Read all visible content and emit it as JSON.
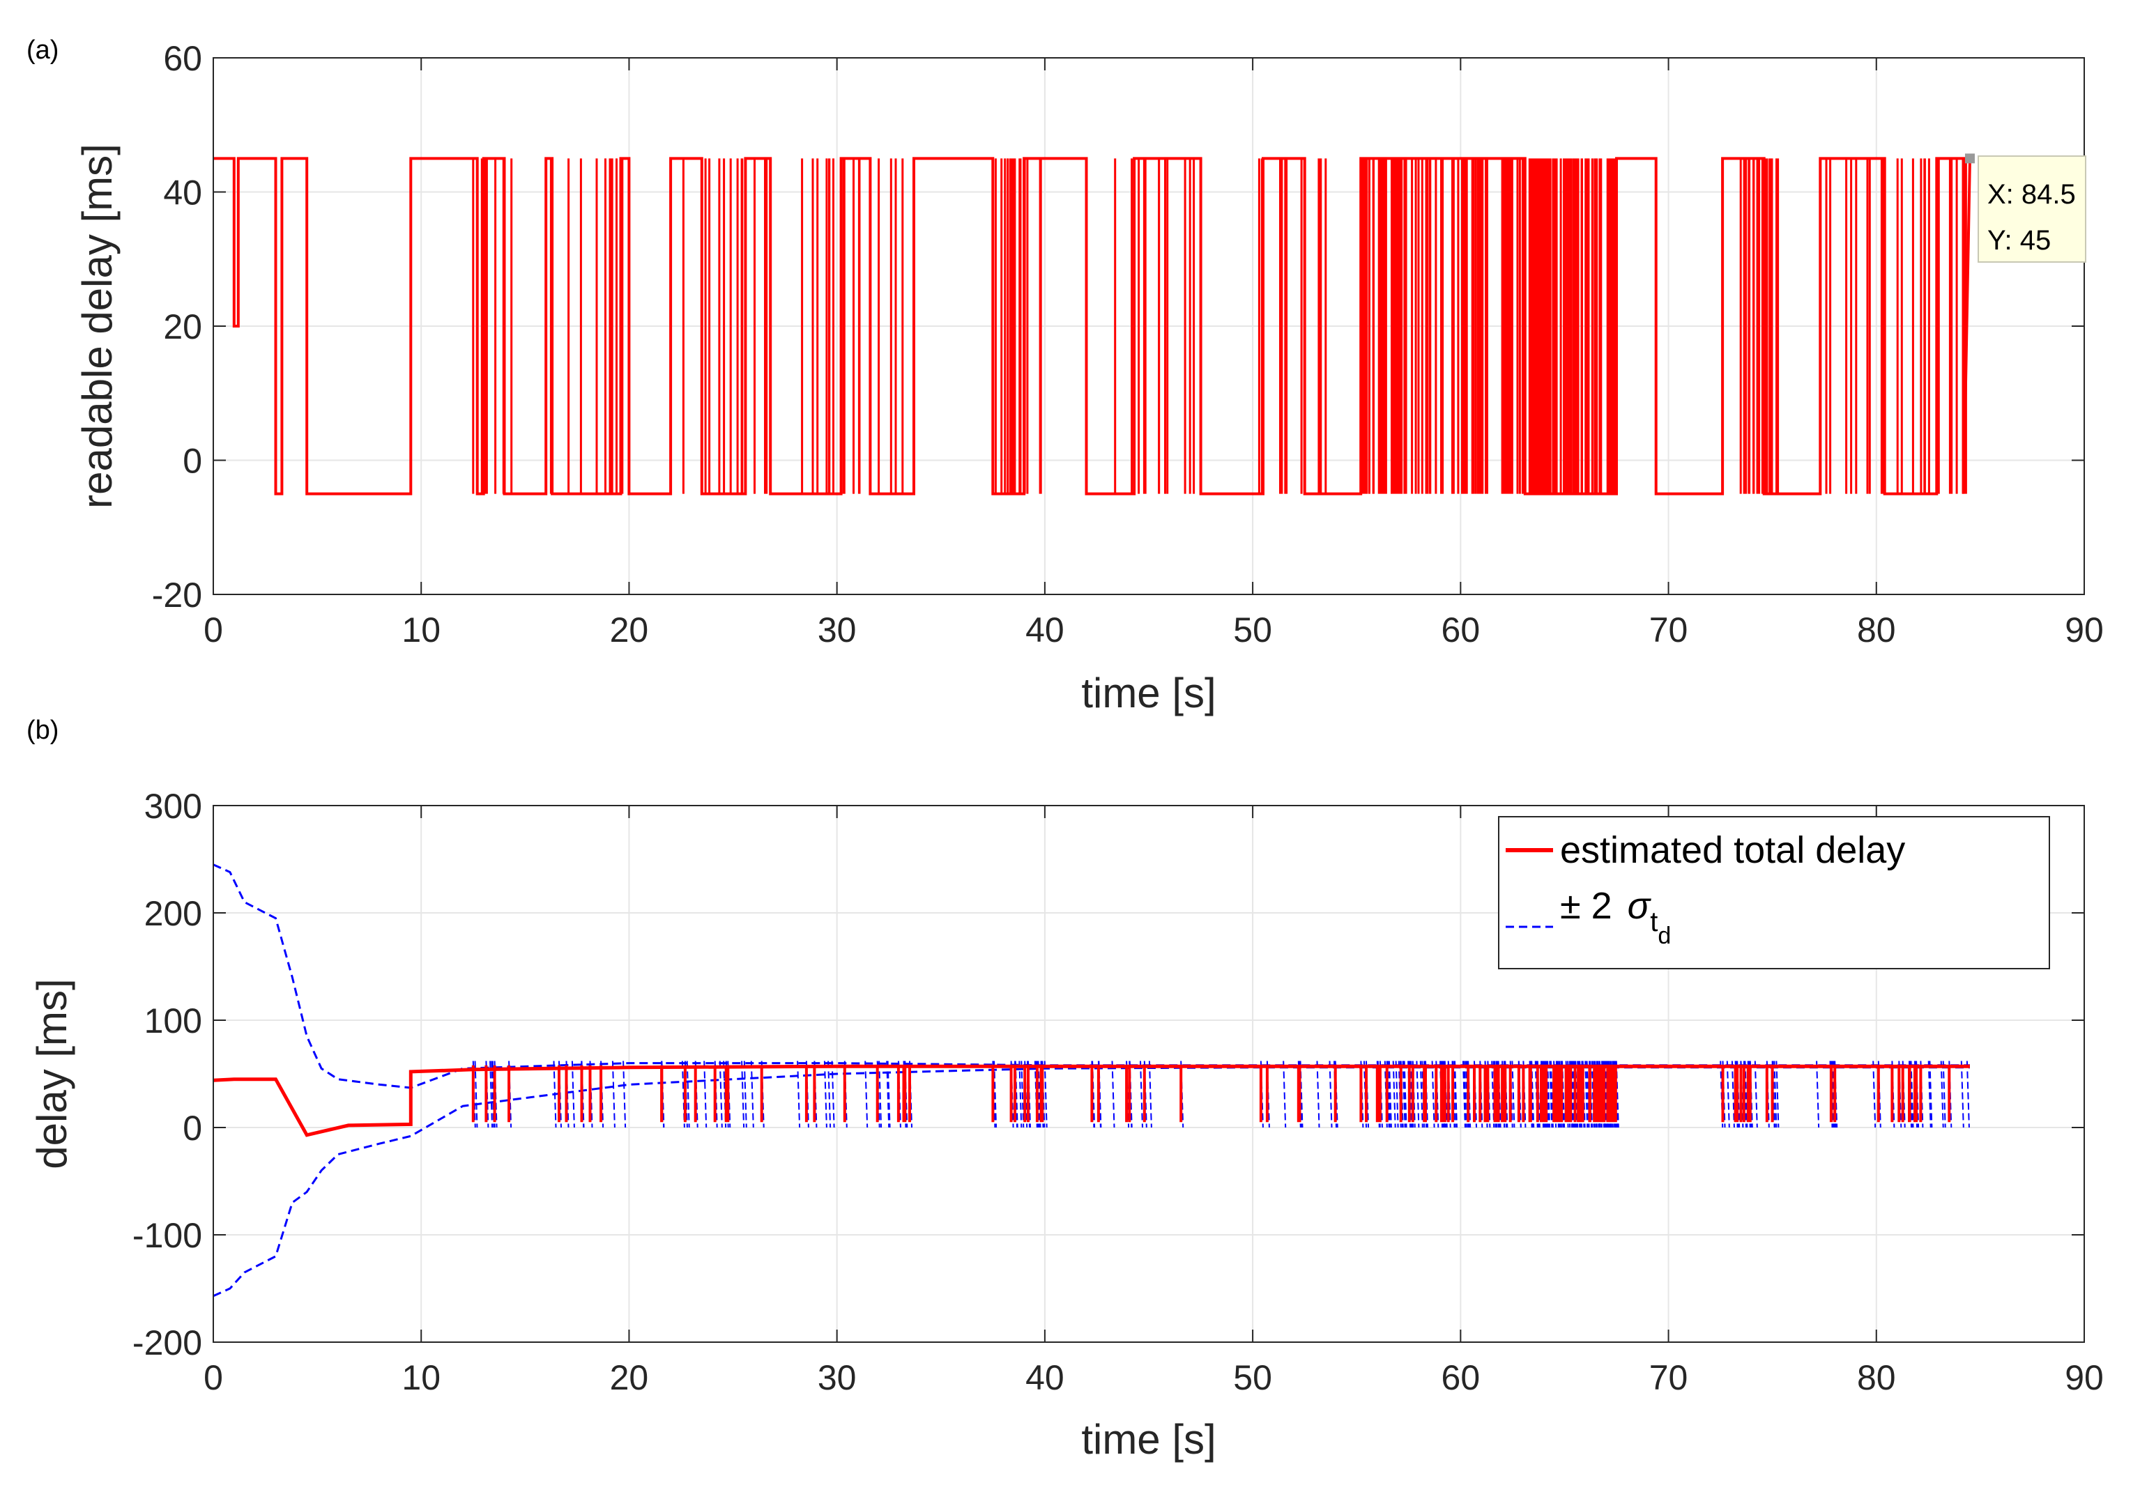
{
  "chart_data": [
    {
      "panel_label": "(a)",
      "type": "line",
      "xlabel": "time [s]",
      "ylabel": "readable delay [ms]",
      "xlim": [
        0,
        90
      ],
      "ylim": [
        -20,
        60
      ],
      "xticks": [
        "0",
        "10",
        "20",
        "30",
        "40",
        "50",
        "60",
        "70",
        "80",
        "90"
      ],
      "yticks": [
        "60",
        "40",
        "20",
        "0",
        "-20"
      ],
      "grid": true,
      "colors": {
        "series": "#ff0000"
      },
      "high_level": 45,
      "low_level": -5,
      "series": [
        {
          "color": "#ff0000",
          "x": [
            0,
            1.0,
            1.0,
            1.2,
            1.2,
            3.0,
            3.0,
            3.3,
            3.3,
            4.5,
            4.5,
            9.5,
            9.5,
            12.7,
            12.7,
            13.0,
            13.0,
            14.0,
            14.0,
            16.0,
            16.0,
            16.3,
            16.3,
            19.6,
            19.6,
            20.0,
            20.0,
            22.0,
            22.0,
            23.5,
            23.5,
            25.6,
            25.6,
            26.8,
            26.8,
            30.2,
            30.2,
            31.6,
            31.6,
            33.7,
            33.7,
            37.5,
            37.5,
            39.0,
            39.0,
            42.0,
            42.0,
            44.3,
            44.3,
            47.5,
            47.5,
            50.5,
            50.5,
            52.5,
            52.5,
            55.2,
            55.2,
            63.1,
            63.1,
            67.5,
            67.5,
            69.4,
            69.4,
            72.6,
            72.6,
            74.6,
            74.6,
            77.3,
            77.3,
            80.4,
            80.4,
            82.9,
            82.9,
            84.2,
            84.2,
            84.5
          ],
          "y": [
            45,
            45,
            20,
            20,
            45,
            45,
            -5,
            -5,
            45,
            45,
            -5,
            -5,
            45,
            45,
            -5,
            -5,
            45,
            45,
            -5,
            -5,
            45,
            45,
            -5,
            -5,
            45,
            45,
            -5,
            -5,
            45,
            45,
            -5,
            -5,
            45,
            45,
            -5,
            -5,
            45,
            45,
            -5,
            -5,
            45,
            45,
            -5,
            -5,
            45,
            45,
            -5,
            -5,
            45,
            45,
            -5,
            -5,
            45,
            45,
            -5,
            -5,
            45,
            45,
            -5,
            -5,
            45,
            45,
            -5,
            -5,
            45,
            45,
            -5,
            -5,
            45,
            45,
            -5,
            -5,
            45,
            45,
            -5,
            45
          ]
        }
      ],
      "datatip": {
        "x_text": "X: 84.5",
        "y_text": "Y: 45",
        "x": 84.5,
        "y": 45
      }
    },
    {
      "panel_label": "(b)",
      "type": "line",
      "xlabel": "time [s]",
      "ylabel": "delay [ms]",
      "xlim": [
        0,
        90
      ],
      "ylim": [
        -200,
        300
      ],
      "xticks": [
        "0",
        "10",
        "20",
        "30",
        "40",
        "50",
        "60",
        "70",
        "80",
        "90"
      ],
      "yticks": [
        "300",
        "200",
        "100",
        "0",
        "-100",
        "-200"
      ],
      "grid": true,
      "legend_position": "top-right",
      "series": [
        {
          "name": "estimated total delay",
          "color": "#ff0000",
          "style": "solid",
          "x": [
            0,
            1,
            3,
            4.5,
            6.5,
            9.5,
            9.5,
            12.5,
            20,
            30,
            40,
            50,
            55,
            60,
            63,
            70,
            80,
            84.5
          ],
          "y": [
            44,
            45,
            45,
            -7,
            2,
            3,
            52,
            54,
            56,
            57,
            57,
            57,
            57,
            57,
            57,
            57,
            57,
            57
          ]
        },
        {
          "name": "± 2 σ_td",
          "color": "#0000ff",
          "style": "dashed",
          "upper": {
            "x": [
              0,
              0.8,
              1.5,
              3.0,
              3.8,
              4.5,
              5.2,
              6.0,
              8.0,
              9.5,
              12.0,
              20,
              30,
              40,
              50,
              60,
              70,
              80,
              84.5
            ],
            "y": [
              245,
              238,
              210,
              195,
              140,
              85,
              55,
              45,
              40,
              37,
              55,
              60,
              60,
              58,
              58,
              58,
              58,
              58,
              58
            ]
          },
          "lower": {
            "x": [
              0,
              0.8,
              1.5,
              3.0,
              3.8,
              4.5,
              5.2,
              6.0,
              8.0,
              9.5,
              12.0,
              20,
              30,
              40,
              50,
              60,
              70,
              80,
              84.5
            ],
            "y": [
              -157,
              -150,
              -135,
              -120,
              -70,
              -60,
              -40,
              -25,
              -15,
              -8,
              20,
              40,
              50,
              55,
              56,
              56,
              56,
              56,
              56
            ]
          }
        }
      ]
    }
  ]
}
